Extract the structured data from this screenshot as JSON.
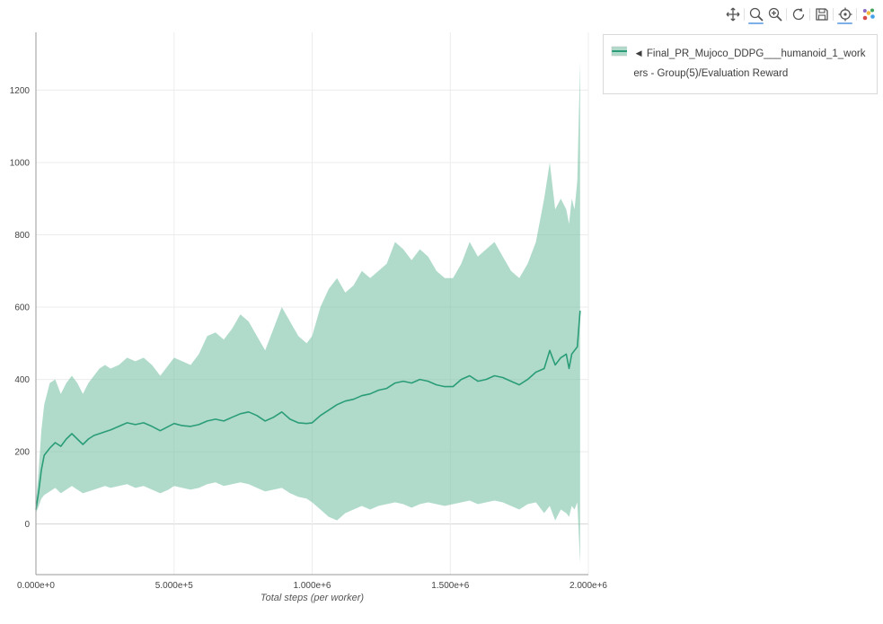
{
  "page": {
    "background": "#ffffff"
  },
  "modebar": {
    "active_color": "#7db0e8",
    "items": [
      {
        "name": "pan",
        "active": false
      },
      {
        "name": "zoom",
        "active": true
      },
      {
        "name": "zoom-in",
        "active": false
      },
      {
        "name": "reset",
        "active": false
      },
      {
        "name": "save",
        "active": false
      },
      {
        "name": "hover",
        "active": true
      },
      {
        "name": "plotly-logo",
        "active": false
      }
    ]
  },
  "chart_data": {
    "type": "line",
    "title": "",
    "xlabel": "Total steps (per worker)",
    "ylabel": "",
    "xlim": [
      0,
      2000000
    ],
    "ylim": [
      -140,
      1360
    ],
    "grid": true,
    "legend_position": "top-right-outside",
    "xticks": {
      "values": [
        0,
        500000,
        1000000,
        1500000,
        2000000
      ],
      "labels": [
        "0.000e+0",
        "5.000e+5",
        "1.000e+6",
        "1.500e+6",
        "2.000e+6"
      ]
    },
    "yticks": {
      "values": [
        0,
        200,
        400,
        600,
        800,
        1000,
        1200
      ],
      "labels": [
        "0",
        "200",
        "400",
        "600",
        "800",
        "1000",
        "1200"
      ]
    },
    "series": [
      {
        "name": "◄ Final_PR_Mujoco_DDPG___humanoid_1_workers - Group(5)/Evaluation Reward",
        "color": "#2a9d78",
        "band_color": "#7cc3a6",
        "band_opacity": 0.6,
        "x": [
          0,
          10000,
          20000,
          30000,
          50000,
          70000,
          90000,
          110000,
          130000,
          150000,
          170000,
          190000,
          210000,
          230000,
          250000,
          270000,
          300000,
          330000,
          360000,
          390000,
          420000,
          450000,
          480000,
          500000,
          530000,
          560000,
          590000,
          620000,
          650000,
          680000,
          710000,
          740000,
          770000,
          800000,
          830000,
          860000,
          890000,
          920000,
          950000,
          980000,
          1000000,
          1030000,
          1060000,
          1090000,
          1120000,
          1150000,
          1180000,
          1210000,
          1240000,
          1270000,
          1300000,
          1330000,
          1360000,
          1390000,
          1420000,
          1450000,
          1480000,
          1510000,
          1540000,
          1570000,
          1600000,
          1630000,
          1660000,
          1690000,
          1720000,
          1750000,
          1780000,
          1810000,
          1840000,
          1860000,
          1880000,
          1900000,
          1920000,
          1930000,
          1940000,
          1950000,
          1960000,
          1970000
        ],
        "mean": [
          40,
          90,
          150,
          190,
          210,
          225,
          215,
          235,
          250,
          235,
          220,
          235,
          245,
          250,
          255,
          260,
          270,
          280,
          275,
          280,
          270,
          258,
          270,
          278,
          272,
          270,
          275,
          285,
          290,
          285,
          295,
          305,
          310,
          300,
          285,
          295,
          310,
          290,
          280,
          278,
          280,
          300,
          315,
          330,
          340,
          345,
          355,
          360,
          370,
          375,
          390,
          395,
          390,
          400,
          395,
          385,
          380,
          380,
          400,
          410,
          395,
          400,
          410,
          405,
          395,
          385,
          400,
          420,
          430,
          480,
          440,
          460,
          470,
          430,
          470,
          480,
          490,
          590
        ],
        "upper": [
          60,
          150,
          260,
          330,
          390,
          400,
          360,
          390,
          410,
          390,
          360,
          390,
          410,
          430,
          440,
          430,
          440,
          460,
          450,
          460,
          440,
          410,
          440,
          460,
          450,
          440,
          470,
          520,
          530,
          510,
          540,
          580,
          560,
          520,
          480,
          540,
          600,
          560,
          520,
          500,
          520,
          600,
          650,
          680,
          640,
          660,
          700,
          680,
          700,
          720,
          780,
          760,
          730,
          760,
          740,
          700,
          680,
          680,
          720,
          780,
          740,
          760,
          780,
          740,
          700,
          680,
          720,
          780,
          900,
          1000,
          870,
          900,
          870,
          830,
          900,
          870,
          950,
          1280
        ],
        "lower": [
          30,
          50,
          70,
          80,
          90,
          100,
          85,
          95,
          105,
          95,
          85,
          90,
          95,
          100,
          105,
          100,
          105,
          110,
          100,
          105,
          95,
          85,
          95,
          105,
          100,
          95,
          100,
          110,
          115,
          105,
          110,
          115,
          110,
          100,
          90,
          95,
          100,
          85,
          75,
          70,
          60,
          40,
          20,
          10,
          30,
          40,
          50,
          40,
          50,
          55,
          60,
          55,
          45,
          55,
          60,
          55,
          50,
          55,
          60,
          65,
          55,
          60,
          65,
          60,
          50,
          40,
          55,
          60,
          30,
          50,
          10,
          40,
          30,
          20,
          50,
          40,
          60,
          -110
        ]
      }
    ]
  }
}
